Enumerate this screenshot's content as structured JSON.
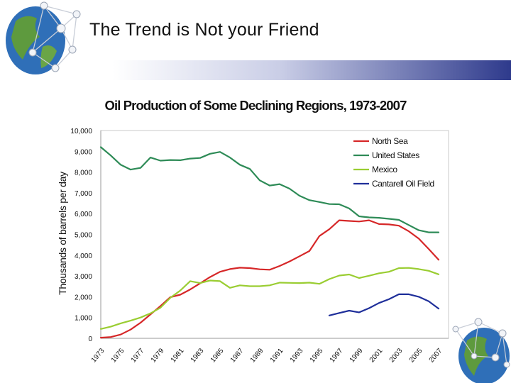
{
  "slide": {
    "title": "The Trend is Not your Friend"
  },
  "icons": {
    "top_left": "globe-network-icon",
    "bottom_right": "globe-network-icon"
  },
  "colors": {
    "north_sea": "#d62728",
    "united_states": "#2e8b57",
    "mexico": "#9acd32",
    "cantarell": "#1f2f9a",
    "banner": "#2e3a8c"
  },
  "chart_data": {
    "type": "line",
    "title": "Oil Production of Some Declining Regions, 1973-2007",
    "xlabel": "",
    "ylabel": "Thousands of barrels per day",
    "ylim": [
      0,
      10000
    ],
    "xlim": [
      1973,
      2008
    ],
    "yticks": [
      "10,000",
      "9,000",
      "8,000",
      "7,000",
      "6,000",
      "5,000",
      "4,000",
      "3,000",
      "2,000",
      "1,000",
      "0"
    ],
    "ytick_values": [
      10000,
      9000,
      8000,
      7000,
      6000,
      5000,
      4000,
      3000,
      2000,
      1000,
      0
    ],
    "xticks": [
      "1973",
      "1975",
      "1977",
      "1979",
      "1981",
      "1983",
      "1985",
      "1987",
      "1989",
      "1991",
      "1993",
      "1995",
      "1997",
      "1999",
      "2001",
      "2003",
      "2005",
      "2007"
    ],
    "xtick_values": [
      1973,
      1975,
      1977,
      1979,
      1981,
      1983,
      1985,
      1987,
      1989,
      1991,
      1993,
      1995,
      1997,
      1999,
      2001,
      2003,
      2005,
      2007
    ],
    "legend_position": "top-right",
    "series": [
      {
        "name": "North Sea",
        "color": "#d62728",
        "x": [
          1973,
          1974,
          1975,
          1976,
          1977,
          1978,
          1979,
          1980,
          1981,
          1982,
          1983,
          1984,
          1985,
          1986,
          1987,
          1988,
          1989,
          1990,
          1991,
          1992,
          1993,
          1994,
          1995,
          1996,
          1997,
          1998,
          1999,
          2000,
          2001,
          2002,
          2003,
          2004,
          2005,
          2006,
          2007
        ],
        "y": [
          30,
          60,
          180,
          420,
          750,
          1150,
          1550,
          1980,
          2100,
          2350,
          2650,
          2950,
          3200,
          3330,
          3400,
          3380,
          3320,
          3300,
          3480,
          3700,
          3950,
          4200,
          4920,
          5250,
          5680,
          5650,
          5620,
          5680,
          5500,
          5480,
          5420,
          5150,
          4800,
          4300,
          3780
        ]
      },
      {
        "name": "United States",
        "color": "#2e8b57",
        "x": [
          1973,
          1974,
          1975,
          1976,
          1977,
          1978,
          1979,
          1980,
          1981,
          1982,
          1983,
          1984,
          1985,
          1986,
          1987,
          1988,
          1989,
          1990,
          1991,
          1992,
          1993,
          1994,
          1995,
          1996,
          1997,
          1998,
          1999,
          2000,
          2001,
          2002,
          2003,
          2004,
          2005,
          2006,
          2007
        ],
        "y": [
          9200,
          8800,
          8350,
          8120,
          8200,
          8700,
          8550,
          8580,
          8570,
          8650,
          8680,
          8880,
          8970,
          8700,
          8350,
          8150,
          7600,
          7350,
          7420,
          7200,
          6860,
          6650,
          6560,
          6460,
          6450,
          6250,
          5870,
          5820,
          5800,
          5750,
          5700,
          5450,
          5200,
          5100,
          5100
        ]
      },
      {
        "name": "Mexico",
        "color": "#9acd32",
        "x": [
          1973,
          1974,
          1975,
          1976,
          1977,
          1978,
          1979,
          1980,
          1981,
          1982,
          1983,
          1984,
          1985,
          1986,
          1987,
          1988,
          1989,
          1990,
          1991,
          1992,
          1993,
          1994,
          1995,
          1996,
          1997,
          1998,
          1999,
          2000,
          2001,
          2002,
          2003,
          2004,
          2005,
          2006,
          2007
        ],
        "y": [
          450,
          560,
          720,
          850,
          1000,
          1200,
          1470,
          1950,
          2300,
          2750,
          2660,
          2780,
          2750,
          2430,
          2550,
          2510,
          2510,
          2550,
          2680,
          2670,
          2660,
          2680,
          2620,
          2850,
          3020,
          3070,
          2900,
          3010,
          3130,
          3200,
          3380,
          3390,
          3330,
          3250,
          3080
        ]
      },
      {
        "name": "Cantarell Oil Field",
        "color": "#1f2f9a",
        "x": [
          1996,
          1997,
          1998,
          1999,
          2000,
          2001,
          2002,
          2003,
          2004,
          2005,
          2006,
          2007
        ],
        "y": [
          1100,
          1220,
          1330,
          1250,
          1450,
          1700,
          1880,
          2120,
          2120,
          2000,
          1780,
          1430
        ]
      }
    ]
  }
}
